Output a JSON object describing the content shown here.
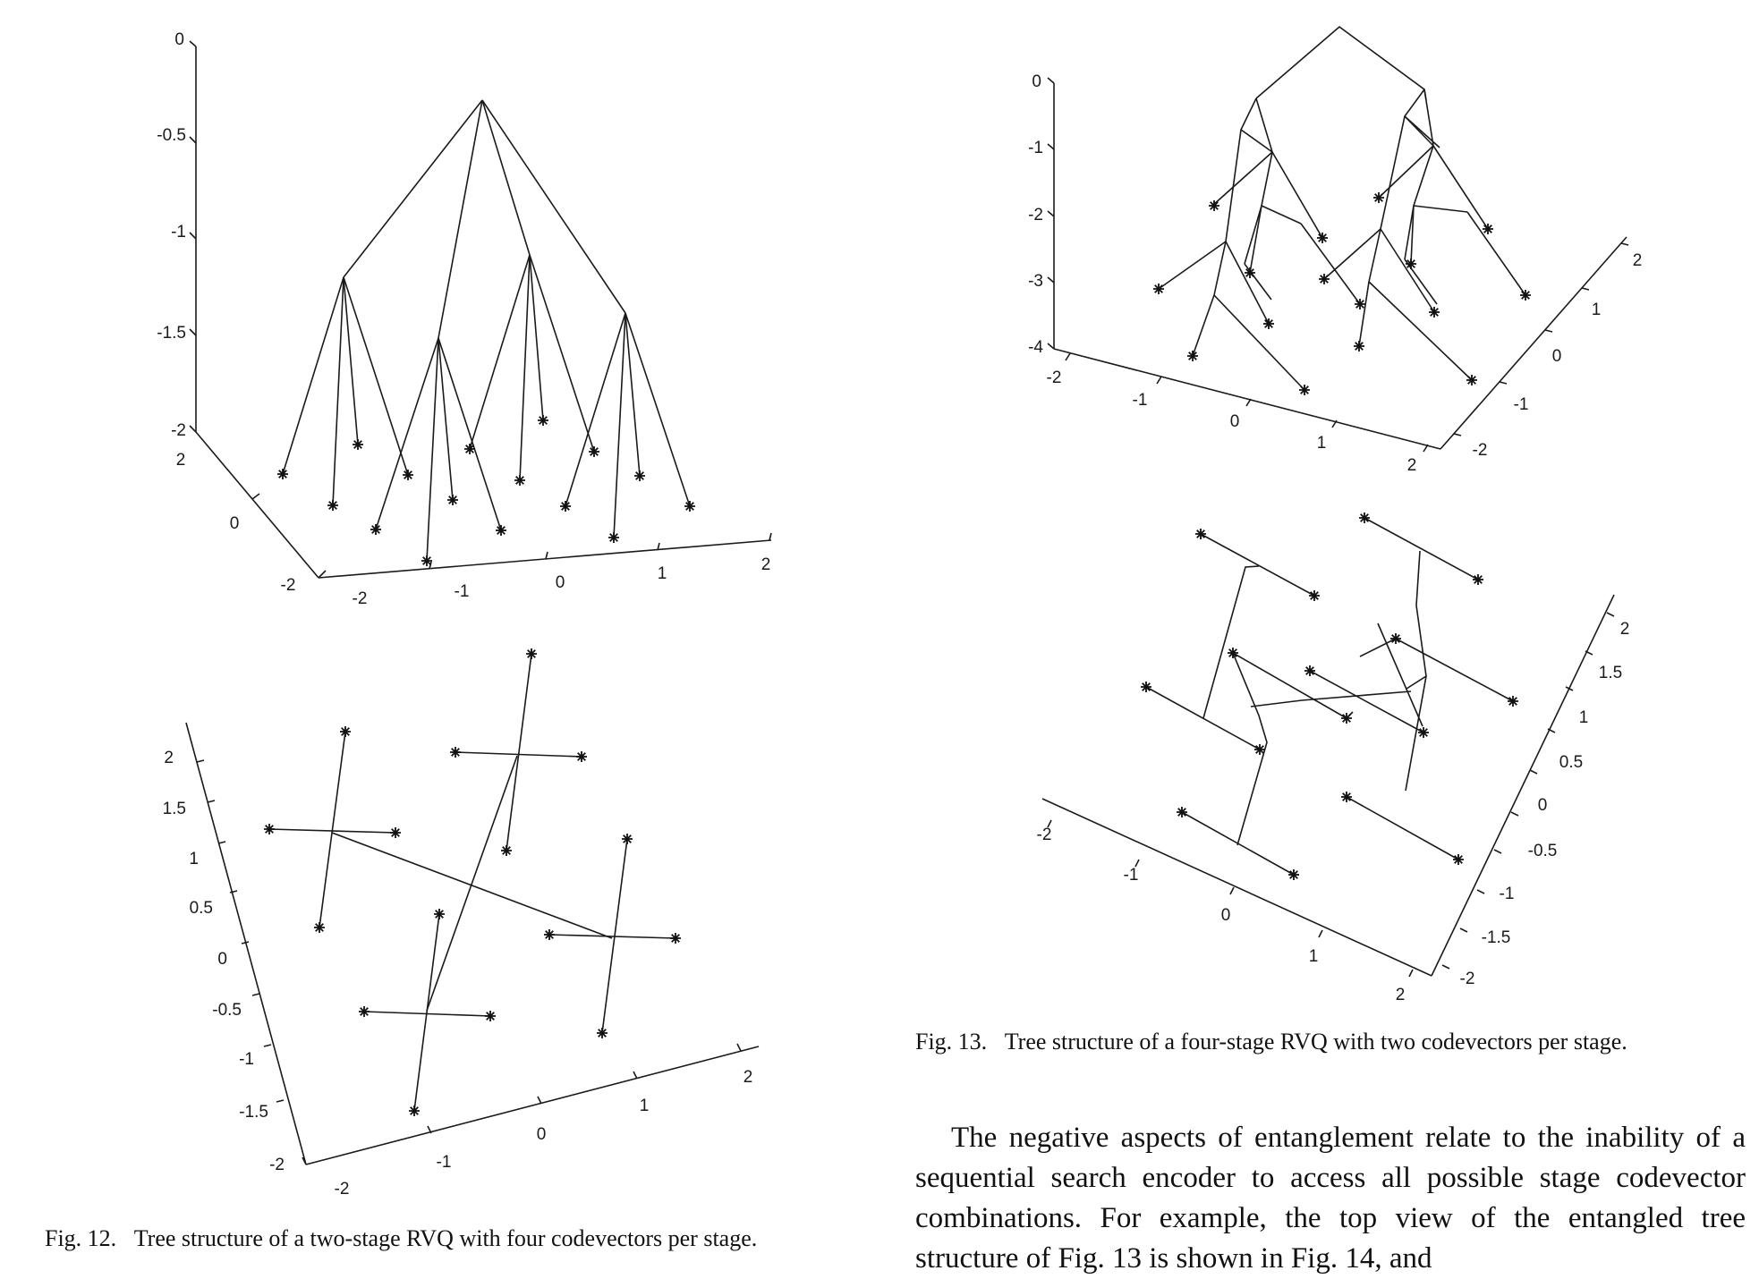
{
  "figure12": {
    "caption_label": "Fig. 12.",
    "caption_text": "Tree structure of a two-stage RVQ with four codevectors per stage.",
    "panel_3d": {
      "z_ticks": [
        "0",
        "-0.5",
        "-1",
        "-1.5",
        "-2"
      ],
      "x_ticks": [
        "-2",
        "-1",
        "0",
        "1",
        "2"
      ],
      "y_ticks": [
        "2",
        "0",
        "-2"
      ]
    },
    "panel_top": {
      "y_ticks": [
        "2",
        "1.5",
        "1",
        "0.5",
        "0",
        "-0.5",
        "-1",
        "-1.5",
        "-2"
      ],
      "x_ticks": [
        "-2",
        "-1",
        "0",
        "1",
        "2"
      ]
    }
  },
  "figure13": {
    "caption_label": "Fig. 13.",
    "caption_text": "Tree structure of a four-stage RVQ with two codevectors per stage.",
    "panel_3d": {
      "z_ticks": [
        "0",
        "-1",
        "-2",
        "-3",
        "-4"
      ],
      "x_ticks": [
        "-2",
        "-1",
        "0",
        "1",
        "2"
      ],
      "y_ticks": [
        "-2",
        "-1",
        "0",
        "1",
        "2"
      ]
    },
    "panel_top": {
      "y_ticks": [
        "2",
        "1.5",
        "1",
        "0.5",
        "0",
        "-0.5",
        "-1",
        "-1.5",
        "-2"
      ],
      "x_ticks": [
        "-2",
        "-1",
        "0",
        "1",
        "2"
      ]
    }
  },
  "body_text": "The negative aspects of entanglement relate to the inability of a sequential search encoder to access all possible stage codevector combinations. For example, the top view of the entangled tree structure of Fig. 13 is shown in Fig. 14, and"
}
